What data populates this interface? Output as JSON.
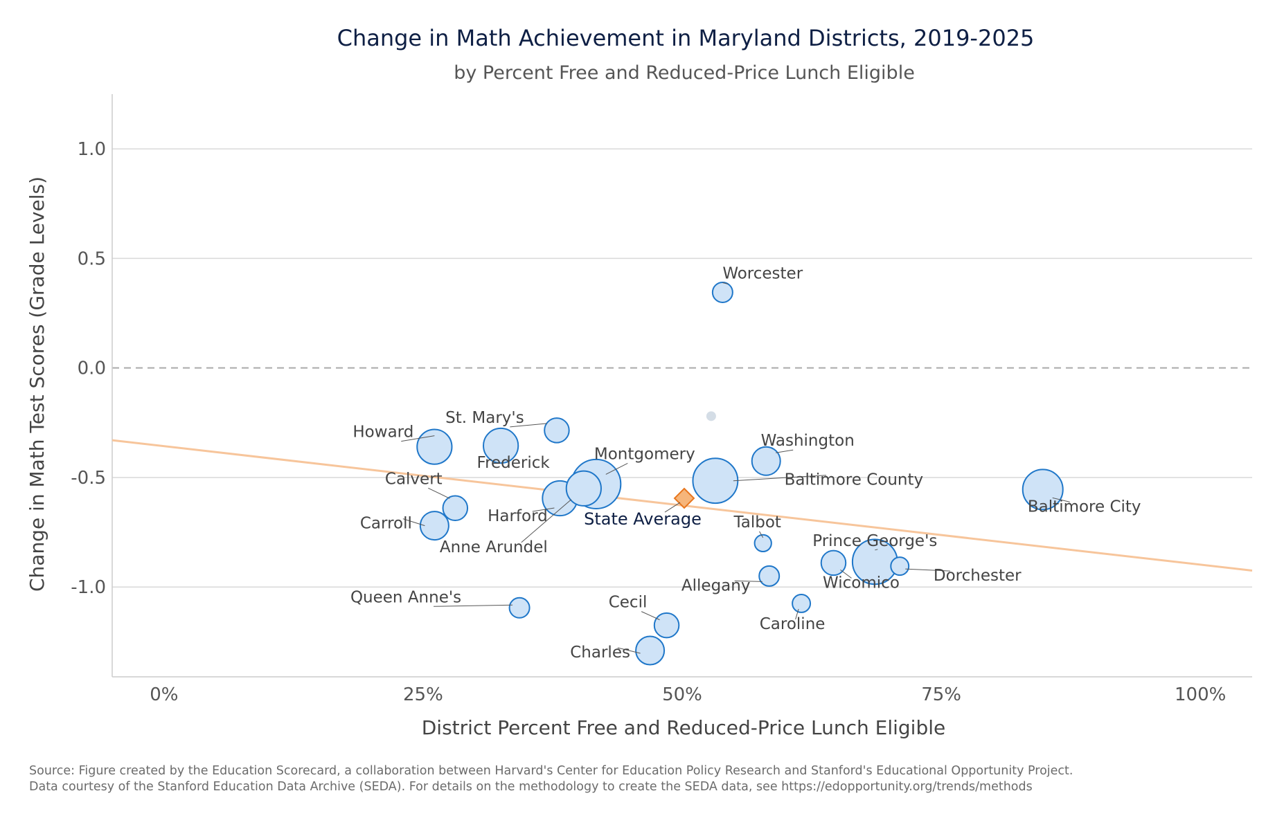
{
  "title": "Change in Math Achievement in Maryland Districts, 2019-2025",
  "subtitle": "by Percent Free and Reduced-Price Lunch Eligible",
  "source": {
    "line1": "Source: Figure created by the Education Scorecard, a collaboration between Harvard's Center for Education Policy Research and Stanford's Educational Opportunity Project.",
    "line2": "Data courtesy of the Stanford Education Data Archive (SEDA). For details on the methodology to create the SEDA data, see https://edopportunity.org/trends/methods"
  },
  "colors": {
    "point_fill": "#cfe3f7",
    "point_stroke": "#1f77c9",
    "state_avg_fill": "#f6b57a",
    "state_avg_stroke": "#e8761e",
    "trend_line": "#f7c59b",
    "grid": "#d9d9d9",
    "zero_line": "#aaaaaa",
    "unlabeled_point": "#d4dde6"
  },
  "chart_data": {
    "type": "scatter",
    "title": "Change in Math Achievement in Maryland Districts, 2019-2025",
    "subtitle": "by Percent Free and Reduced-Price Lunch Eligible",
    "xlabel": "District Percent Free and Reduced-Price Lunch Eligible",
    "ylabel": "Change in Math Test Scores (Grade Levels)",
    "xlim": [
      -0.05,
      1.05
    ],
    "ylim": [
      -1.41,
      1.25
    ],
    "x_ticks": [
      0,
      0.25,
      0.5,
      0.75,
      1.0
    ],
    "x_tick_labels": [
      "0%",
      "25%",
      "50%",
      "75%",
      "100%"
    ],
    "y_ticks": [
      1.0,
      0.5,
      0.0,
      -0.5,
      -1.0
    ],
    "y_tick_labels": [
      "1.0",
      "0.5",
      "0.0",
      "-0.5",
      "-1.0"
    ],
    "grid": true,
    "reference_line_y": 0.0,
    "trend_line": {
      "x": [
        -0.05,
        1.05
      ],
      "y": [
        -0.33,
        -0.925
      ]
    },
    "state_average": {
      "label": "State Average",
      "x": 0.502,
      "y": -0.595
    },
    "unlabeled_points": [
      {
        "x": 0.528,
        "y": -0.22
      }
    ],
    "points": [
      {
        "name": "Worcester",
        "x": 0.539,
        "y": 0.345,
        "size": 1
      },
      {
        "name": "Howard",
        "x": 0.261,
        "y": -0.36,
        "size": 3
      },
      {
        "name": "St. Mary's",
        "x": 0.379,
        "y": -0.285,
        "size": 1.5
      },
      {
        "name": "Frederick",
        "x": 0.325,
        "y": -0.355,
        "size": 3
      },
      {
        "name": "Washington",
        "x": 0.581,
        "y": -0.425,
        "size": 2
      },
      {
        "name": "Montgomery",
        "x": 0.417,
        "y": -0.53,
        "size": 6
      },
      {
        "name": "Baltimore County",
        "x": 0.532,
        "y": -0.515,
        "size": 5
      },
      {
        "name": "Baltimore City",
        "x": 0.848,
        "y": -0.555,
        "size": 4
      },
      {
        "name": "Calvert",
        "x": 0.281,
        "y": -0.64,
        "size": 1.5
      },
      {
        "name": "Carroll",
        "x": 0.261,
        "y": -0.72,
        "size": 2
      },
      {
        "name": "Harford",
        "x": 0.382,
        "y": -0.595,
        "size": 3
      },
      {
        "name": "Anne Arundel",
        "x": 0.405,
        "y": -0.55,
        "size": 3
      },
      {
        "name": "Talbot",
        "x": 0.578,
        "y": -0.8,
        "size": 0.7
      },
      {
        "name": "Prince George's",
        "x": 0.686,
        "y": -0.885,
        "size": 5
      },
      {
        "name": "Wicomico",
        "x": 0.646,
        "y": -0.89,
        "size": 1.5
      },
      {
        "name": "Dorchester",
        "x": 0.71,
        "y": -0.905,
        "size": 0.8
      },
      {
        "name": "Allegany",
        "x": 0.584,
        "y": -0.95,
        "size": 1
      },
      {
        "name": "Queen Anne's",
        "x": 0.343,
        "y": -1.095,
        "size": 1
      },
      {
        "name": "Cecil",
        "x": 0.485,
        "y": -1.175,
        "size": 1.5
      },
      {
        "name": "Caroline",
        "x": 0.615,
        "y": -1.075,
        "size": 0.8
      },
      {
        "name": "Charles",
        "x": 0.469,
        "y": -1.29,
        "size": 2
      }
    ]
  }
}
